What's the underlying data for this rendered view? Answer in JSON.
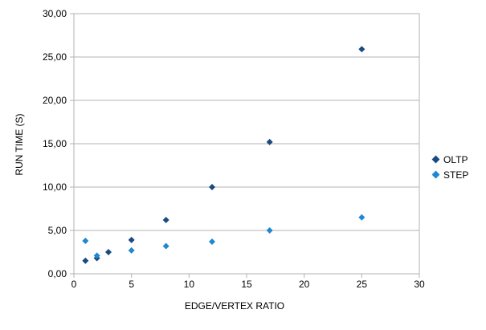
{
  "chart_data": {
    "type": "scatter",
    "title": "",
    "xlabel": "EDGE/VERTEX RATIO",
    "ylabel": "RUN TIME (S)",
    "xlim": [
      0,
      30
    ],
    "ylim": [
      0,
      30
    ],
    "grid": "horizontal",
    "legend_position": "right",
    "marker_shape": "diamond",
    "x_ticks": [
      {
        "v": 0,
        "label": "0"
      },
      {
        "v": 5,
        "label": "5"
      },
      {
        "v": 10,
        "label": "10"
      },
      {
        "v": 15,
        "label": "15"
      },
      {
        "v": 20,
        "label": "20"
      },
      {
        "v": 25,
        "label": "25"
      },
      {
        "v": 30,
        "label": "30"
      }
    ],
    "y_ticks": [
      {
        "v": 0,
        "label": "0,00"
      },
      {
        "v": 5,
        "label": "5,00"
      },
      {
        "v": 10,
        "label": "10,00"
      },
      {
        "v": 15,
        "label": "15,00"
      },
      {
        "v": 20,
        "label": "20,00"
      },
      {
        "v": 25,
        "label": "25,00"
      },
      {
        "v": 30,
        "label": "30,00"
      }
    ],
    "series": [
      {
        "name": "OLTP",
        "color": "#1A4B80",
        "points": [
          [
            1,
            1.5
          ],
          [
            2,
            1.8
          ],
          [
            3,
            2.5
          ],
          [
            5,
            3.9
          ],
          [
            8,
            6.2
          ],
          [
            12,
            10.0
          ],
          [
            17,
            15.2
          ],
          [
            25,
            25.9
          ]
        ]
      },
      {
        "name": "STEP",
        "color": "#1E88D2",
        "points": [
          [
            1,
            3.8
          ],
          [
            2,
            2.1
          ],
          [
            5,
            2.7
          ],
          [
            8,
            3.2
          ],
          [
            12,
            3.7
          ],
          [
            17,
            5.0
          ],
          [
            25,
            6.5
          ]
        ]
      }
    ],
    "colors": {
      "gridline": "#b3b3b3",
      "axis_line": "#b3b3b3",
      "text": "#000000",
      "background": "#ffffff"
    }
  }
}
